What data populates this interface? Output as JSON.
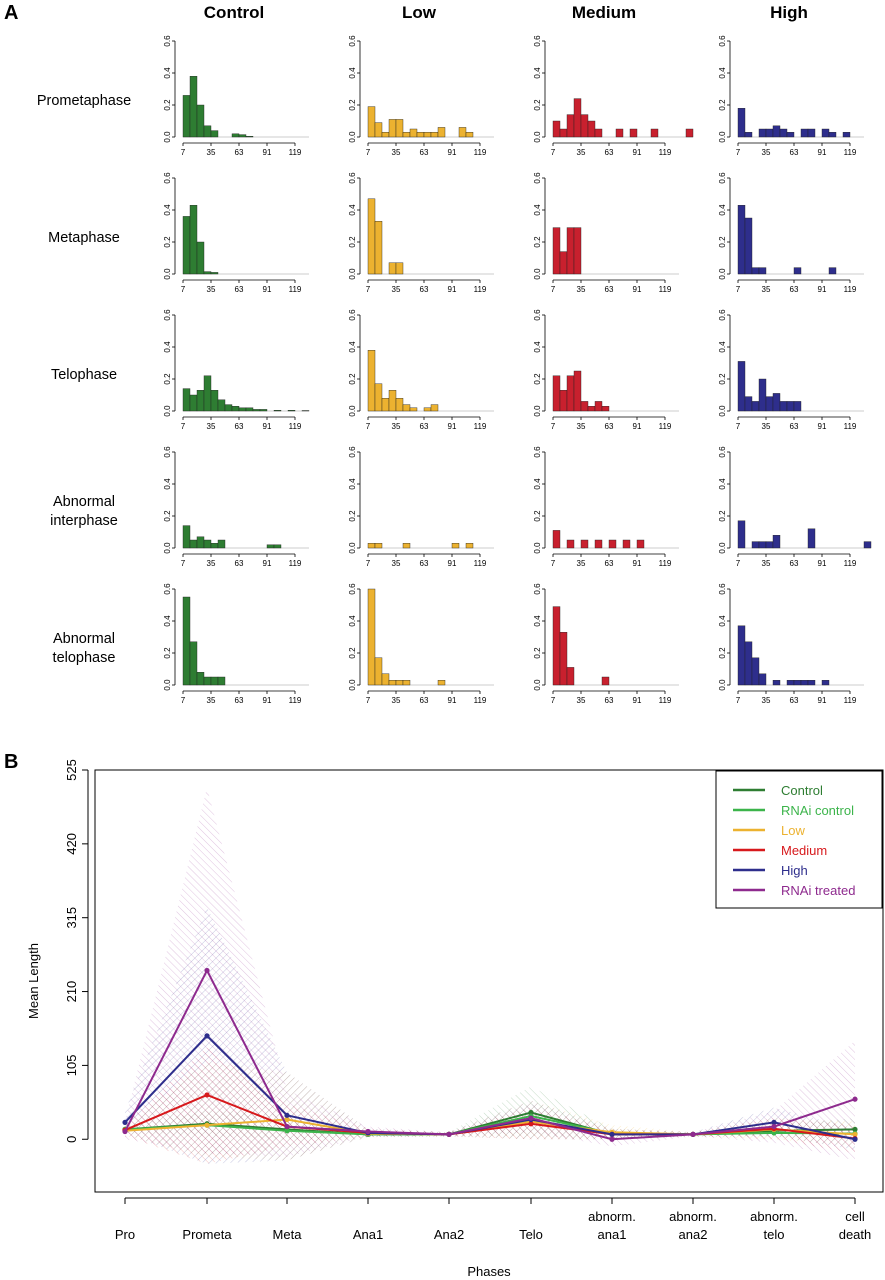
{
  "panel_a": {
    "label": "A",
    "columns": [
      {
        "name": "Control",
        "color": "#2e7d32"
      },
      {
        "name": "Low",
        "color": "#ecb230"
      },
      {
        "name": "Medium",
        "color": "#c8202e"
      },
      {
        "name": "High",
        "color": "#2e2e8c"
      }
    ],
    "rows": [
      "Prometaphase",
      "Metaphase",
      "Telophase",
      "Abnormal interphase",
      "Abnormal telophase"
    ]
  },
  "panel_b": {
    "label": "B"
  },
  "chart_data": [
    {
      "type": "bar",
      "subtype": "histogram-grid",
      "title": "Panel A: phase duration distributions",
      "bin_width": 7,
      "bin_start": 7,
      "xticks": [
        7,
        35,
        63,
        91,
        119
      ],
      "yticks": [
        0.0,
        0.2,
        0.4,
        0.6
      ],
      "ylim": [
        0,
        0.6
      ],
      "xlabel": "",
      "ylabel": "",
      "grid": false,
      "columns": [
        "Control",
        "Low",
        "Medium",
        "High"
      ],
      "rows": [
        "Prometaphase",
        "Metaphase",
        "Telophase",
        "Abnormal interphase",
        "Abnormal telophase"
      ],
      "series": [
        {
          "row": "Prometaphase",
          "column": "Control",
          "values": [
            0.26,
            0.38,
            0.2,
            0.07,
            0.04,
            0,
            0,
            0.02,
            0.015,
            0.005
          ]
        },
        {
          "row": "Prometaphase",
          "column": "Low",
          "values": [
            0.19,
            0.09,
            0.03,
            0.11,
            0.11,
            0.03,
            0.05,
            0.03,
            0.03,
            0.03,
            0.06,
            0,
            0,
            0.06,
            0.03
          ]
        },
        {
          "row": "Prometaphase",
          "column": "Medium",
          "values": [
            0.1,
            0.05,
            0.14,
            0.24,
            0.14,
            0.1,
            0.05,
            0,
            0,
            0.05,
            0,
            0.05,
            0,
            0,
            0.05,
            0,
            0,
            0,
            0,
            0.05
          ]
        },
        {
          "row": "Prometaphase",
          "column": "High",
          "values": [
            0.18,
            0.03,
            0,
            0.05,
            0.05,
            0.07,
            0.05,
            0.03,
            0,
            0.05,
            0.05,
            0,
            0.05,
            0.03,
            0,
            0.03
          ]
        },
        {
          "row": "Metaphase",
          "column": "Control",
          "values": [
            0.36,
            0.43,
            0.2,
            0.015,
            0.01
          ]
        },
        {
          "row": "Metaphase",
          "column": "Low",
          "values": [
            0.47,
            0.33,
            0,
            0.07,
            0.07
          ]
        },
        {
          "row": "Metaphase",
          "column": "Medium",
          "values": [
            0.29,
            0.14,
            0.29,
            0.29
          ]
        },
        {
          "row": "Metaphase",
          "column": "High",
          "values": [
            0.43,
            0.35,
            0.04,
            0.04,
            0,
            0,
            0,
            0,
            0.04,
            0,
            0,
            0,
            0,
            0.04
          ]
        },
        {
          "row": "Telophase",
          "column": "Control",
          "values": [
            0.14,
            0.1,
            0.13,
            0.22,
            0.13,
            0.07,
            0.04,
            0.03,
            0.02,
            0.02,
            0.01,
            0.01,
            0,
            0.005,
            0,
            0.005,
            0,
            0.003
          ]
        },
        {
          "row": "Telophase",
          "column": "Low",
          "values": [
            0.38,
            0.17,
            0.08,
            0.13,
            0.08,
            0.04,
            0.02,
            0,
            0.02,
            0.04
          ]
        },
        {
          "row": "Telophase",
          "column": "Medium",
          "values": [
            0.22,
            0.13,
            0.22,
            0.25,
            0.06,
            0.03,
            0.06,
            0.03
          ]
        },
        {
          "row": "Telophase",
          "column": "High",
          "values": [
            0.31,
            0.09,
            0.06,
            0.2,
            0.09,
            0.11,
            0.06,
            0.06,
            0.06
          ]
        },
        {
          "row": "Abnormal interphase",
          "column": "Control",
          "values": [
            0.14,
            0.05,
            0.07,
            0.05,
            0.03,
            0.05,
            0,
            0,
            0,
            0,
            0,
            0,
            0.02,
            0.02
          ]
        },
        {
          "row": "Abnormal interphase",
          "column": "Low",
          "values": [
            0.03,
            0.03,
            0,
            0,
            0,
            0.03,
            0,
            0,
            0,
            0,
            0,
            0,
            0.03,
            0,
            0.03
          ]
        },
        {
          "row": "Abnormal interphase",
          "column": "Medium",
          "values": [
            0.11,
            0,
            0.05,
            0,
            0.05,
            0,
            0.05,
            0,
            0.05,
            0,
            0.05,
            0,
            0.05
          ]
        },
        {
          "row": "Abnormal interphase",
          "column": "High",
          "values": [
            0.17,
            0,
            0.04,
            0.04,
            0.04,
            0.08,
            0,
            0,
            0,
            0,
            0.12,
            0,
            0,
            0,
            0,
            0,
            0,
            0,
            0.04
          ]
        },
        {
          "row": "Abnormal telophase",
          "column": "Control",
          "values": [
            0.55,
            0.27,
            0.08,
            0.05,
            0.05,
            0.05
          ]
        },
        {
          "row": "Abnormal telophase",
          "column": "Low",
          "values": [
            0.6,
            0.17,
            0.07,
            0.03,
            0.03,
            0.03,
            0,
            0,
            0,
            0,
            0.03
          ]
        },
        {
          "row": "Abnormal telophase",
          "column": "Medium",
          "values": [
            0.49,
            0.33,
            0.11,
            0,
            0,
            0,
            0,
            0.05
          ]
        },
        {
          "row": "Abnormal telophase",
          "column": "High",
          "values": [
            0.37,
            0.27,
            0.17,
            0.07,
            0,
            0.03,
            0,
            0.03,
            0.03,
            0.03,
            0.03,
            0,
            0.03
          ]
        }
      ]
    },
    {
      "type": "line",
      "title": "Panel B: mean phase length",
      "xlabel": "Phases",
      "ylabel": "Mean Length",
      "categories": [
        "Pro",
        "Prometa",
        "Meta",
        "Ana1",
        "Ana2",
        "Telo",
        "abnorm. ana1",
        "abnorm. ana2",
        "abnorm. telo",
        "cell death"
      ],
      "yticks": [
        0,
        105,
        210,
        315,
        420,
        525
      ],
      "ylim": [
        -75,
        525
      ],
      "legend_position": "top-right",
      "grid": false,
      "series": [
        {
          "name": "Control",
          "color": "#2e7d32",
          "values": [
            14,
            22,
            14,
            7,
            7,
            38,
            7,
            7,
            12,
            14
          ]
        },
        {
          "name": "RNAi control",
          "color": "#3cb44b",
          "values": [
            14,
            20,
            12,
            7,
            7,
            33,
            8,
            7,
            9,
            8
          ]
        },
        {
          "name": "Low",
          "color": "#ecb230",
          "values": [
            12,
            20,
            28,
            8,
            7,
            25,
            10,
            7,
            14,
            7
          ]
        },
        {
          "name": "Medium",
          "color": "#d7191c",
          "values": [
            13,
            63,
            18,
            9,
            7,
            22,
            7,
            7,
            15,
            1
          ]
        },
        {
          "name": "High",
          "color": "#2e2e8c",
          "values": [
            24,
            147,
            34,
            9,
            7,
            28,
            7,
            7,
            24,
            0
          ]
        },
        {
          "name": "RNAi treated",
          "color": "#8e2a8e",
          "values": [
            11,
            240,
            18,
            11,
            7,
            30,
            0,
            7,
            18,
            57
          ]
        }
      ],
      "bands": [
        {
          "series": "Control",
          "upper": [
            20,
            40,
            35,
            12,
            10,
            75,
            15,
            10,
            20,
            30
          ],
          "lower": [
            8,
            5,
            0,
            3,
            4,
            5,
            0,
            4,
            3,
            0
          ]
        },
        {
          "series": "Low",
          "upper": [
            20,
            110,
            95,
            14,
            10,
            55,
            20,
            10,
            30,
            25
          ],
          "lower": [
            5,
            -25,
            -30,
            3,
            4,
            0,
            0,
            4,
            0,
            -10
          ]
        },
        {
          "series": "Medium",
          "upper": [
            22,
            130,
            50,
            15,
            10,
            45,
            15,
            10,
            30,
            20
          ],
          "lower": [
            4,
            -35,
            -10,
            3,
            4,
            0,
            0,
            4,
            0,
            -20
          ]
        },
        {
          "series": "High",
          "upper": [
            40,
            330,
            95,
            15,
            10,
            55,
            15,
            10,
            45,
            15
          ],
          "lower": [
            8,
            -35,
            -30,
            3,
            4,
            0,
            0,
            4,
            5,
            -15
          ]
        },
        {
          "series": "RNAi treated",
          "upper": [
            25,
            500,
            70,
            18,
            10,
            50,
            10,
            10,
            40,
            140
          ],
          "lower": [
            0,
            -20,
            -25,
            4,
            4,
            10,
            -10,
            4,
            -5,
            -30
          ]
        }
      ]
    }
  ]
}
